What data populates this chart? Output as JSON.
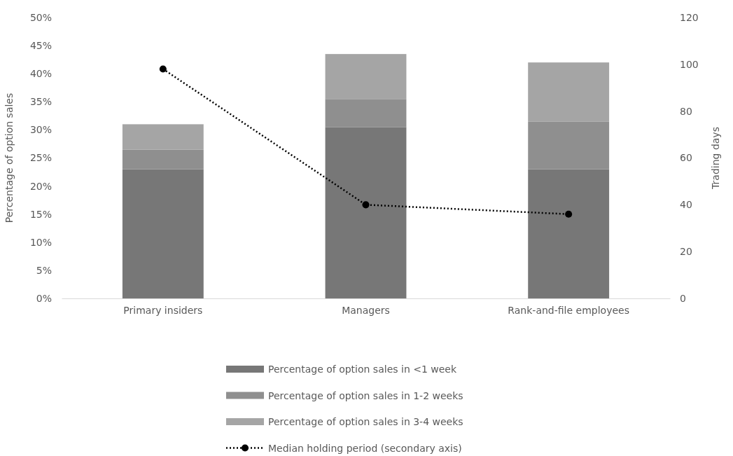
{
  "chart_data": {
    "type": "bar",
    "stacked": true,
    "categories": [
      "Primary insiders",
      "Managers",
      "Rank-and-file employees"
    ],
    "ylabel": "Percentage of option sales",
    "y2label": "Trading days",
    "ylim": [
      0,
      50
    ],
    "yticks": [
      {
        "value": 0,
        "label": "0%"
      },
      {
        "value": 5,
        "label": "5%"
      },
      {
        "value": 10,
        "label": "10%"
      },
      {
        "value": 15,
        "label": "15%"
      },
      {
        "value": 20,
        "label": "20%"
      },
      {
        "value": 25,
        "label": "25%"
      },
      {
        "value": 30,
        "label": "30%"
      },
      {
        "value": 35,
        "label": "35%"
      },
      {
        "value": 40,
        "label": "40%"
      },
      {
        "value": 45,
        "label": "45%"
      },
      {
        "value": 50,
        "label": "50%"
      }
    ],
    "y2lim": [
      0,
      120
    ],
    "y2ticks": [
      0,
      20,
      40,
      60,
      80,
      100,
      120
    ],
    "legend": "bottom",
    "series": [
      {
        "name": "Percentage of option sales in <1 week",
        "color": "#777777",
        "values": [
          23,
          30.5,
          23
        ]
      },
      {
        "name": "Percentage of option sales in 1-2 weeks",
        "color": "#8f8f8f",
        "values": [
          3.5,
          5,
          8.5
        ]
      },
      {
        "name": "Percentage of option sales in 3-4 weeks",
        "color": "#a5a5a5",
        "values": [
          4.5,
          8,
          10.5
        ]
      },
      {
        "name": "Median holding period (secondary axis)",
        "type": "line",
        "axis": "y2",
        "color": "#000000",
        "marker": "circle",
        "line_style": "dotted",
        "values": [
          98,
          40,
          36
        ]
      }
    ]
  }
}
